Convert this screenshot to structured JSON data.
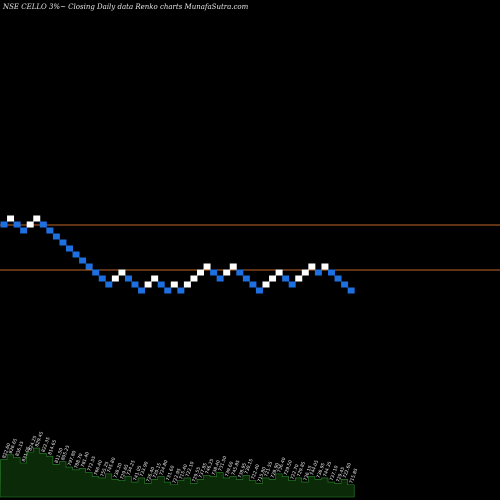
{
  "title": "NSE CELLO 3%~  Closing Daily data  Renko  charts MunafaSutra.com",
  "colors": {
    "background": "#000000",
    "up_brick": "#ffffff",
    "down_brick": "#1e6fe0",
    "line": "#c0662a",
    "volume_fill": "#0a2a08",
    "volume_stroke": "#2e8a2e"
  },
  "chart_data": {
    "type": "renko",
    "bricks": [
      {
        "direction": "down",
        "level": 12
      },
      {
        "direction": "up",
        "level": 13
      },
      {
        "direction": "down",
        "level": 12
      },
      {
        "direction": "down",
        "level": 11
      },
      {
        "direction": "up",
        "level": 12
      },
      {
        "direction": "up",
        "level": 13
      },
      {
        "direction": "down",
        "level": 12
      },
      {
        "direction": "down",
        "level": 11
      },
      {
        "direction": "down",
        "level": 10
      },
      {
        "direction": "down",
        "level": 9
      },
      {
        "direction": "down",
        "level": 8
      },
      {
        "direction": "down",
        "level": 7
      },
      {
        "direction": "down",
        "level": 6
      },
      {
        "direction": "down",
        "level": 5
      },
      {
        "direction": "down",
        "level": 4
      },
      {
        "direction": "down",
        "level": 3
      },
      {
        "direction": "down",
        "level": 2
      },
      {
        "direction": "up",
        "level": 3
      },
      {
        "direction": "up",
        "level": 4
      },
      {
        "direction": "down",
        "level": 3
      },
      {
        "direction": "down",
        "level": 2
      },
      {
        "direction": "down",
        "level": 1
      },
      {
        "direction": "up",
        "level": 2
      },
      {
        "direction": "up",
        "level": 3
      },
      {
        "direction": "down",
        "level": 2
      },
      {
        "direction": "down",
        "level": 1
      },
      {
        "direction": "up",
        "level": 2
      },
      {
        "direction": "down",
        "level": 1
      },
      {
        "direction": "up",
        "level": 2
      },
      {
        "direction": "up",
        "level": 3
      },
      {
        "direction": "up",
        "level": 4
      },
      {
        "direction": "up",
        "level": 5
      },
      {
        "direction": "down",
        "level": 4
      },
      {
        "direction": "down",
        "level": 3
      },
      {
        "direction": "up",
        "level": 4
      },
      {
        "direction": "up",
        "level": 5
      },
      {
        "direction": "down",
        "level": 4
      },
      {
        "direction": "down",
        "level": 3
      },
      {
        "direction": "down",
        "level": 2
      },
      {
        "direction": "down",
        "level": 1
      },
      {
        "direction": "up",
        "level": 2
      },
      {
        "direction": "up",
        "level": 3
      },
      {
        "direction": "up",
        "level": 4
      },
      {
        "direction": "down",
        "level": 3
      },
      {
        "direction": "down",
        "level": 2
      },
      {
        "direction": "up",
        "level": 3
      },
      {
        "direction": "up",
        "level": 4
      },
      {
        "direction": "up",
        "level": 5
      },
      {
        "direction": "down",
        "level": 4
      },
      {
        "direction": "up",
        "level": 5
      },
      {
        "direction": "down",
        "level": 4
      },
      {
        "direction": "down",
        "level": 3
      },
      {
        "direction": "down",
        "level": 2
      },
      {
        "direction": "down",
        "level": 1
      }
    ],
    "reference_lines": [
      {
        "level": 12
      },
      {
        "level": 4.5
      }
    ],
    "volume_labels": [
      "822.60",
      "826.65",
      "836.15",
      "831.05",
      "824.25",
      "829.45",
      "822.35",
      "814.65",
      "811.50",
      "805.25",
      "797.80",
      "788.70",
      "781.40",
      "772.55",
      "766.40",
      "755.25",
      "745.80",
      "738.20",
      "729.65",
      "734.25",
      "741.05",
      "733.90",
      "726.40",
      "720.15",
      "724.80",
      "731.60",
      "722.95",
      "715.40",
      "722.10",
      "729.55",
      "737.85",
      "746.25",
      "738.40",
      "731.50",
      "739.60",
      "745.85",
      "738.95",
      "730.15",
      "722.40",
      "715.80",
      "721.55",
      "728.90",
      "736.40",
      "729.50",
      "722.70",
      "729.85",
      "736.15",
      "744.05",
      "736.95",
      "744.35",
      "737.10",
      "729.45",
      "722.60",
      "715.85"
    ],
    "volume_profile": [
      0.55,
      0.62,
      0.58,
      0.5,
      0.66,
      0.72,
      0.64,
      0.6,
      0.48,
      0.52,
      0.44,
      0.4,
      0.42,
      0.36,
      0.3,
      0.28,
      0.34,
      0.26,
      0.24,
      0.3,
      0.22,
      0.28,
      0.2,
      0.26,
      0.3,
      0.22,
      0.18,
      0.24,
      0.28,
      0.2,
      0.26,
      0.32,
      0.3,
      0.36,
      0.28,
      0.3,
      0.26,
      0.32,
      0.24,
      0.2,
      0.28,
      0.26,
      0.34,
      0.3,
      0.24,
      0.28,
      0.22,
      0.3,
      0.26,
      0.28,
      0.22,
      0.2,
      0.26,
      0.18
    ]
  }
}
